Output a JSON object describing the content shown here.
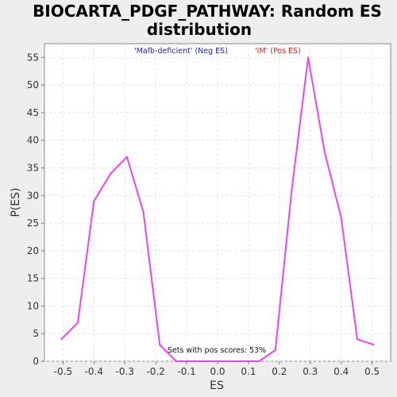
{
  "chart_data": {
    "type": "line",
    "title_lines": [
      "BIOCARTA_PDGF_PATHWAY: Random ES",
      "distribution"
    ],
    "xlabel": "ES",
    "ylabel": "P(ES)",
    "xlim": [
      -0.56,
      0.56
    ],
    "ylim": [
      0,
      57.5
    ],
    "xticks": [
      -0.5,
      -0.4,
      -0.3,
      -0.2,
      -0.1,
      0.0,
      0.1,
      0.2,
      0.3,
      0.4,
      0.5
    ],
    "xtick_labels": [
      "-0.5",
      "-0.4",
      "-0.3",
      "-0.2",
      "-0.1",
      "0.0",
      "0.1",
      "0.2",
      "0.3",
      "0.4",
      "0.5"
    ],
    "yticks": [
      0,
      5,
      10,
      15,
      20,
      25,
      30,
      35,
      40,
      45,
      50,
      55
    ],
    "ytick_labels": [
      "0",
      "5",
      "10",
      "15",
      "20",
      "25",
      "30",
      "35",
      "40",
      "45",
      "50",
      "55"
    ],
    "grid": true,
    "series": [
      {
        "color": "#ee44ee",
        "x": [
          -0.505,
          -0.452,
          -0.4,
          -0.346,
          -0.293,
          -0.24,
          -0.187,
          -0.134,
          -0.08,
          -0.027,
          0.027,
          0.08,
          0.134,
          0.187,
          0.24,
          0.293,
          0.346,
          0.4,
          0.452,
          0.505
        ],
        "y": [
          4,
          7,
          29,
          34,
          37,
          27,
          3,
          0,
          0,
          0,
          0,
          0,
          0,
          2,
          31,
          55,
          38,
          26,
          4,
          3
        ]
      }
    ],
    "legend": [
      {
        "label": "'Mafb-deficient' (Neg ES)",
        "color": "#2222bb"
      },
      {
        "label": "'IM' (Pos ES)",
        "color": "#dd2222"
      }
    ],
    "annotation": "Sets with pos scores: 53%"
  }
}
